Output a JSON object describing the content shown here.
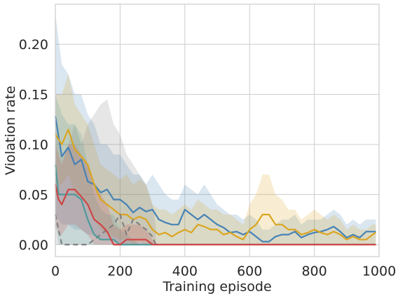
{
  "chart_data": {
    "type": "line",
    "xlabel": "Training episode",
    "ylabel": "Violation rate",
    "xlim": [
      0,
      1000
    ],
    "ylim": [
      -0.012,
      0.24
    ],
    "x_ticks": [
      0,
      200,
      400,
      600,
      800,
      1000
    ],
    "x_tick_labels": [
      "0",
      "200",
      "400",
      "600",
      "800",
      "1000"
    ],
    "y_ticks": [
      0.0,
      0.05,
      0.1,
      0.15,
      0.2
    ],
    "y_tick_labels": [
      "0.00",
      "0.05",
      "0.10",
      "0.15",
      "0.20"
    ],
    "grid": true,
    "legend": "none",
    "colors": {
      "blue": "#4682b4",
      "orange": "#daa520",
      "gray": "#808080",
      "teal": "#4f9a9a",
      "red": "#cd4646"
    },
    "series": [
      {
        "color_key": "blue",
        "style": "solid",
        "band": true,
        "x": [
          0,
          20,
          40,
          60,
          80,
          100,
          120,
          140,
          160,
          180,
          200,
          220,
          240,
          260,
          280,
          300,
          320,
          340,
          360,
          380,
          400,
          420,
          440,
          460,
          480,
          500,
          520,
          540,
          560,
          580,
          600,
          620,
          640,
          660,
          680,
          700,
          720,
          740,
          760,
          780,
          800,
          820,
          840,
          860,
          880,
          900,
          920,
          940,
          960,
          980,
          990
        ],
        "y": [
          0.128,
          0.088,
          0.097,
          0.08,
          0.085,
          0.063,
          0.06,
          0.052,
          0.055,
          0.045,
          0.045,
          0.04,
          0.032,
          0.037,
          0.033,
          0.035,
          0.025,
          0.022,
          0.02,
          0.02,
          0.035,
          0.03,
          0.025,
          0.03,
          0.025,
          0.02,
          0.017,
          0.012,
          0.013,
          0.01,
          0.013,
          0.008,
          0.003,
          0.003,
          0.008,
          0.01,
          0.01,
          0.013,
          0.007,
          0.01,
          0.012,
          0.013,
          0.015,
          0.018,
          0.013,
          0.007,
          0.01,
          0.007,
          0.013,
          0.013,
          0.013
        ],
        "upper": [
          0.23,
          0.18,
          0.17,
          0.15,
          0.15,
          0.13,
          0.12,
          0.1,
          0.1,
          0.09,
          0.09,
          0.08,
          0.07,
          0.07,
          0.06,
          0.07,
          0.06,
          0.05,
          0.045,
          0.045,
          0.06,
          0.055,
          0.05,
          0.06,
          0.05,
          0.04,
          0.035,
          0.03,
          0.03,
          0.025,
          0.03,
          0.025,
          0.015,
          0.015,
          0.02,
          0.025,
          0.025,
          0.03,
          0.02,
          0.025,
          0.025,
          0.025,
          0.03,
          0.035,
          0.03,
          0.02,
          0.025,
          0.02,
          0.025,
          0.025,
          0.025
        ],
        "lower": [
          0.03,
          0.02,
          0.02,
          0.015,
          0.015,
          0.01,
          0.01,
          0.005,
          0.005,
          0.003,
          0.003,
          0.0,
          0.0,
          0.0,
          0.0,
          0.0,
          0.0,
          0.0,
          0.0,
          0.0,
          0.0,
          0.0,
          0.0,
          0.0,
          0.0,
          0.0,
          0.0,
          0.0,
          0.0,
          0.0,
          0.0,
          0.0,
          0.0,
          0.0,
          0.0,
          0.0,
          0.0,
          0.0,
          0.0,
          0.0,
          0.0,
          0.0,
          0.0,
          0.0,
          0.0,
          0.0,
          0.0,
          0.0,
          0.0,
          0.0,
          0.0
        ]
      },
      {
        "color_key": "orange",
        "style": "solid",
        "band": true,
        "x": [
          0,
          20,
          40,
          60,
          80,
          100,
          120,
          140,
          160,
          180,
          200,
          220,
          240,
          260,
          280,
          300,
          320,
          340,
          360,
          380,
          400,
          420,
          440,
          460,
          480,
          500,
          520,
          540,
          560,
          580,
          600,
          620,
          640,
          660,
          680,
          700,
          720,
          740,
          760,
          780,
          800,
          820,
          840,
          860,
          880,
          900,
          920,
          940,
          960,
          980,
          990
        ],
        "y": [
          0.11,
          0.1,
          0.115,
          0.095,
          0.088,
          0.08,
          0.06,
          0.045,
          0.04,
          0.035,
          0.03,
          0.03,
          0.025,
          0.028,
          0.025,
          0.015,
          0.01,
          0.012,
          0.008,
          0.012,
          0.015,
          0.012,
          0.02,
          0.018,
          0.015,
          0.015,
          0.01,
          0.012,
          0.008,
          0.005,
          0.015,
          0.02,
          0.03,
          0.03,
          0.02,
          0.02,
          0.015,
          0.015,
          0.01,
          0.012,
          0.015,
          0.012,
          0.01,
          0.013,
          0.01,
          0.005,
          0.008,
          0.005,
          0.005,
          0.01,
          0.012
        ],
        "upper": [
          0.15,
          0.15,
          0.17,
          0.14,
          0.13,
          0.12,
          0.1,
          0.08,
          0.075,
          0.07,
          0.065,
          0.07,
          0.06,
          0.065,
          0.06,
          0.04,
          0.035,
          0.035,
          0.03,
          0.035,
          0.04,
          0.035,
          0.045,
          0.04,
          0.035,
          0.035,
          0.03,
          0.03,
          0.025,
          0.02,
          0.04,
          0.05,
          0.07,
          0.07,
          0.05,
          0.045,
          0.035,
          0.035,
          0.025,
          0.03,
          0.035,
          0.03,
          0.025,
          0.03,
          0.025,
          0.015,
          0.02,
          0.015,
          0.015,
          0.02,
          0.02
        ],
        "lower": [
          0.06,
          0.06,
          0.07,
          0.05,
          0.05,
          0.04,
          0.025,
          0.015,
          0.01,
          0.008,
          0.005,
          0.005,
          0.0,
          0.003,
          0.0,
          0.0,
          0.0,
          0.0,
          0.0,
          0.0,
          0.0,
          0.0,
          0.0,
          0.0,
          0.0,
          0.0,
          0.0,
          0.0,
          0.0,
          0.0,
          0.0,
          0.0,
          0.0,
          0.0,
          0.0,
          0.0,
          0.0,
          0.0,
          0.0,
          0.0,
          0.0,
          0.0,
          0.0,
          0.0,
          0.0,
          0.0,
          0.0,
          0.0,
          0.0,
          0.0,
          0.0
        ]
      },
      {
        "color_key": "gray",
        "style": "dashed",
        "band": true,
        "x": [
          0,
          10,
          20,
          40,
          60,
          80,
          100,
          120,
          140,
          160,
          180,
          200,
          220,
          240,
          260,
          280,
          300,
          310
        ],
        "y": [
          0.03,
          0.015,
          0.0,
          0.0,
          0.0,
          0.0,
          0.0,
          0.005,
          0.01,
          0.015,
          0.02,
          0.03,
          0.01,
          0.025,
          0.02,
          0.015,
          0.008,
          0.0
        ],
        "upper": [
          0.12,
          0.1,
          0.09,
          0.1,
          0.12,
          0.1,
          0.12,
          0.13,
          0.14,
          0.145,
          0.12,
          0.11,
          0.09,
          0.08,
          0.07,
          0.06,
          0.04,
          0.02
        ],
        "lower": [
          0.0,
          0.0,
          0.0,
          0.0,
          0.0,
          0.0,
          0.0,
          0.0,
          0.0,
          0.0,
          0.0,
          0.0,
          0.0,
          0.0,
          0.0,
          0.0,
          0.0,
          0.0
        ]
      },
      {
        "color_key": "teal",
        "style": "solid",
        "band": true,
        "x": [
          0,
          10,
          20,
          40,
          60,
          80,
          100,
          120,
          140,
          160,
          180,
          200,
          220,
          240,
          260,
          280,
          300,
          320,
          340,
          360,
          380,
          400,
          420,
          440,
          460,
          480,
          500,
          520,
          540,
          560,
          580,
          600,
          620,
          640,
          660,
          680,
          700,
          720,
          740,
          760,
          780,
          800,
          820,
          840,
          860,
          880,
          900,
          920,
          940,
          960,
          980,
          990
        ],
        "y": [
          0.08,
          0.05,
          0.05,
          0.05,
          0.05,
          0.045,
          0.025,
          0.01,
          0.005,
          0.005,
          0.005,
          0.0,
          0.0,
          0.0,
          0.0,
          0.0,
          0.0,
          0.0,
          0.0,
          0.0,
          0.0,
          0.0,
          0.0,
          0.0,
          0.0,
          0.0,
          0.0,
          0.0,
          0.0,
          0.0,
          0.0,
          0.0,
          0.0,
          0.0,
          0.0,
          0.0,
          0.0,
          0.0,
          0.0,
          0.0,
          0.0,
          0.0,
          0.0,
          0.0,
          0.0,
          0.0,
          0.0,
          0.0,
          0.0,
          0.0,
          0.0,
          0.0
        ],
        "upper": [
          0.15,
          0.14,
          0.13,
          0.12,
          0.12,
          0.11,
          0.08,
          0.05,
          0.035,
          0.03,
          0.03,
          0.015,
          0.01,
          0.005,
          0.0,
          0.0,
          0.0,
          0.0,
          0.0,
          0.0,
          0.0,
          0.0,
          0.0,
          0.0,
          0.0,
          0.0,
          0.0,
          0.0,
          0.0,
          0.0,
          0.0,
          0.0,
          0.0,
          0.0,
          0.0,
          0.0,
          0.0,
          0.0,
          0.0,
          0.0,
          0.0,
          0.0,
          0.0,
          0.0,
          0.0,
          0.0,
          0.0,
          0.0,
          0.0,
          0.0,
          0.0,
          0.0
        ],
        "lower": [
          0.02,
          0.0,
          0.0,
          0.0,
          0.0,
          0.0,
          0.0,
          0.0,
          0.0,
          0.0,
          0.0,
          0.0,
          0.0,
          0.0,
          0.0,
          0.0,
          0.0,
          0.0,
          0.0,
          0.0,
          0.0,
          0.0,
          0.0,
          0.0,
          0.0,
          0.0,
          0.0,
          0.0,
          0.0,
          0.0,
          0.0,
          0.0,
          0.0,
          0.0,
          0.0,
          0.0,
          0.0,
          0.0,
          0.0,
          0.0,
          0.0,
          0.0,
          0.0,
          0.0,
          0.0,
          0.0,
          0.0,
          0.0,
          0.0,
          0.0,
          0.0,
          0.0
        ]
      },
      {
        "color_key": "red",
        "style": "solid",
        "band": true,
        "x": [
          0,
          10,
          20,
          40,
          60,
          80,
          100,
          120,
          140,
          160,
          180,
          200,
          220,
          240,
          260,
          280,
          300,
          320,
          340,
          360,
          380,
          400,
          420,
          440,
          460,
          480,
          500,
          520,
          540,
          560,
          580,
          600,
          620,
          640,
          660,
          680,
          700,
          720,
          740,
          760,
          780,
          800,
          820,
          840,
          860,
          880,
          900,
          920,
          940,
          960,
          980,
          990
        ],
        "y": [
          0.06,
          0.045,
          0.04,
          0.055,
          0.055,
          0.048,
          0.04,
          0.025,
          0.02,
          0.013,
          0.0,
          0.0,
          0.005,
          0.005,
          0.005,
          0.005,
          0.0,
          0.0,
          0.0,
          0.0,
          0.0,
          0.0,
          0.0,
          0.0,
          0.0,
          0.0,
          0.0,
          0.0,
          0.0,
          0.0,
          0.0,
          0.0,
          0.0,
          0.0,
          0.0,
          0.0,
          0.0,
          0.0,
          0.0,
          0.0,
          0.0,
          0.0,
          0.0,
          0.0,
          0.0,
          0.0,
          0.0,
          0.0,
          0.0,
          0.0,
          0.0,
          0.0
        ],
        "upper": [
          0.1,
          0.09,
          0.08,
          0.1,
          0.1,
          0.09,
          0.08,
          0.06,
          0.05,
          0.04,
          0.02,
          0.015,
          0.02,
          0.02,
          0.02,
          0.015,
          0.005,
          0.0,
          0.0,
          0.0,
          0.0,
          0.0,
          0.0,
          0.0,
          0.0,
          0.0,
          0.0,
          0.0,
          0.0,
          0.0,
          0.0,
          0.0,
          0.0,
          0.0,
          0.0,
          0.0,
          0.0,
          0.0,
          0.0,
          0.0,
          0.0,
          0.0,
          0.0,
          0.0,
          0.0,
          0.0,
          0.0,
          0.0,
          0.0,
          0.0,
          0.0,
          0.0
        ],
        "lower": [
          0.02,
          0.01,
          0.01,
          0.02,
          0.02,
          0.015,
          0.01,
          0.0,
          0.0,
          0.0,
          0.0,
          0.0,
          0.0,
          0.0,
          0.0,
          0.0,
          0.0,
          0.0,
          0.0,
          0.0,
          0.0,
          0.0,
          0.0,
          0.0,
          0.0,
          0.0,
          0.0,
          0.0,
          0.0,
          0.0,
          0.0,
          0.0,
          0.0,
          0.0,
          0.0,
          0.0,
          0.0,
          0.0,
          0.0,
          0.0,
          0.0,
          0.0,
          0.0,
          0.0,
          0.0,
          0.0,
          0.0,
          0.0,
          0.0,
          0.0,
          0.0,
          0.0
        ]
      }
    ]
  }
}
